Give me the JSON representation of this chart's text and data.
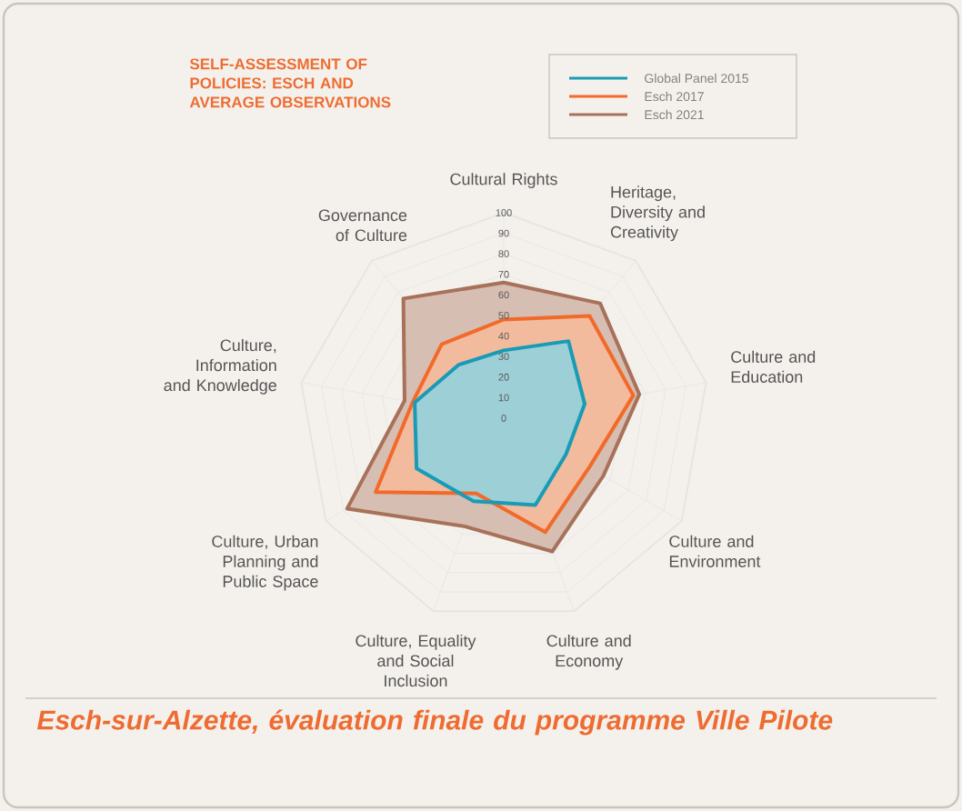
{
  "chart_data": {
    "type": "radar",
    "title": "SELF-ASSESSMENT OF POLICIES: ESCH AND AVERAGE OBSERVATIONS",
    "categories": [
      "Cultural Rights",
      "Heritage, Diversity and Creativity",
      "Culture and Education",
      "Culture and Environment",
      "Culture and Economy",
      "Culture, Equality and Social Inclusion",
      "Culture, Urban Planning and Public Space",
      "Culture, Information and Knowledge",
      "Governance of Culture"
    ],
    "series": [
      {
        "name": "Global Panel 2015",
        "color": "#1a9bb5",
        "values": [
          33,
          49,
          40,
          35,
          45,
          43,
          49,
          44,
          34
        ]
      },
      {
        "name": "Esch 2017",
        "color": "#f26a2a",
        "values": [
          48,
          65,
          64,
          48,
          59,
          39,
          72,
          45,
          47
        ]
      },
      {
        "name": "Esch 2021",
        "color": "#a8715a",
        "values": [
          66,
          73,
          67,
          56,
          69,
          56,
          88,
          49,
          76
        ]
      }
    ],
    "ylim": [
      0,
      100
    ],
    "yticks": [
      0,
      10,
      20,
      30,
      40,
      50,
      60,
      70,
      80,
      90,
      100
    ],
    "grid": true,
    "legend": "top right",
    "annotations": [
      "Esch-sur-Alzette, évaluation finale du programme Ville Pilote"
    ]
  }
}
